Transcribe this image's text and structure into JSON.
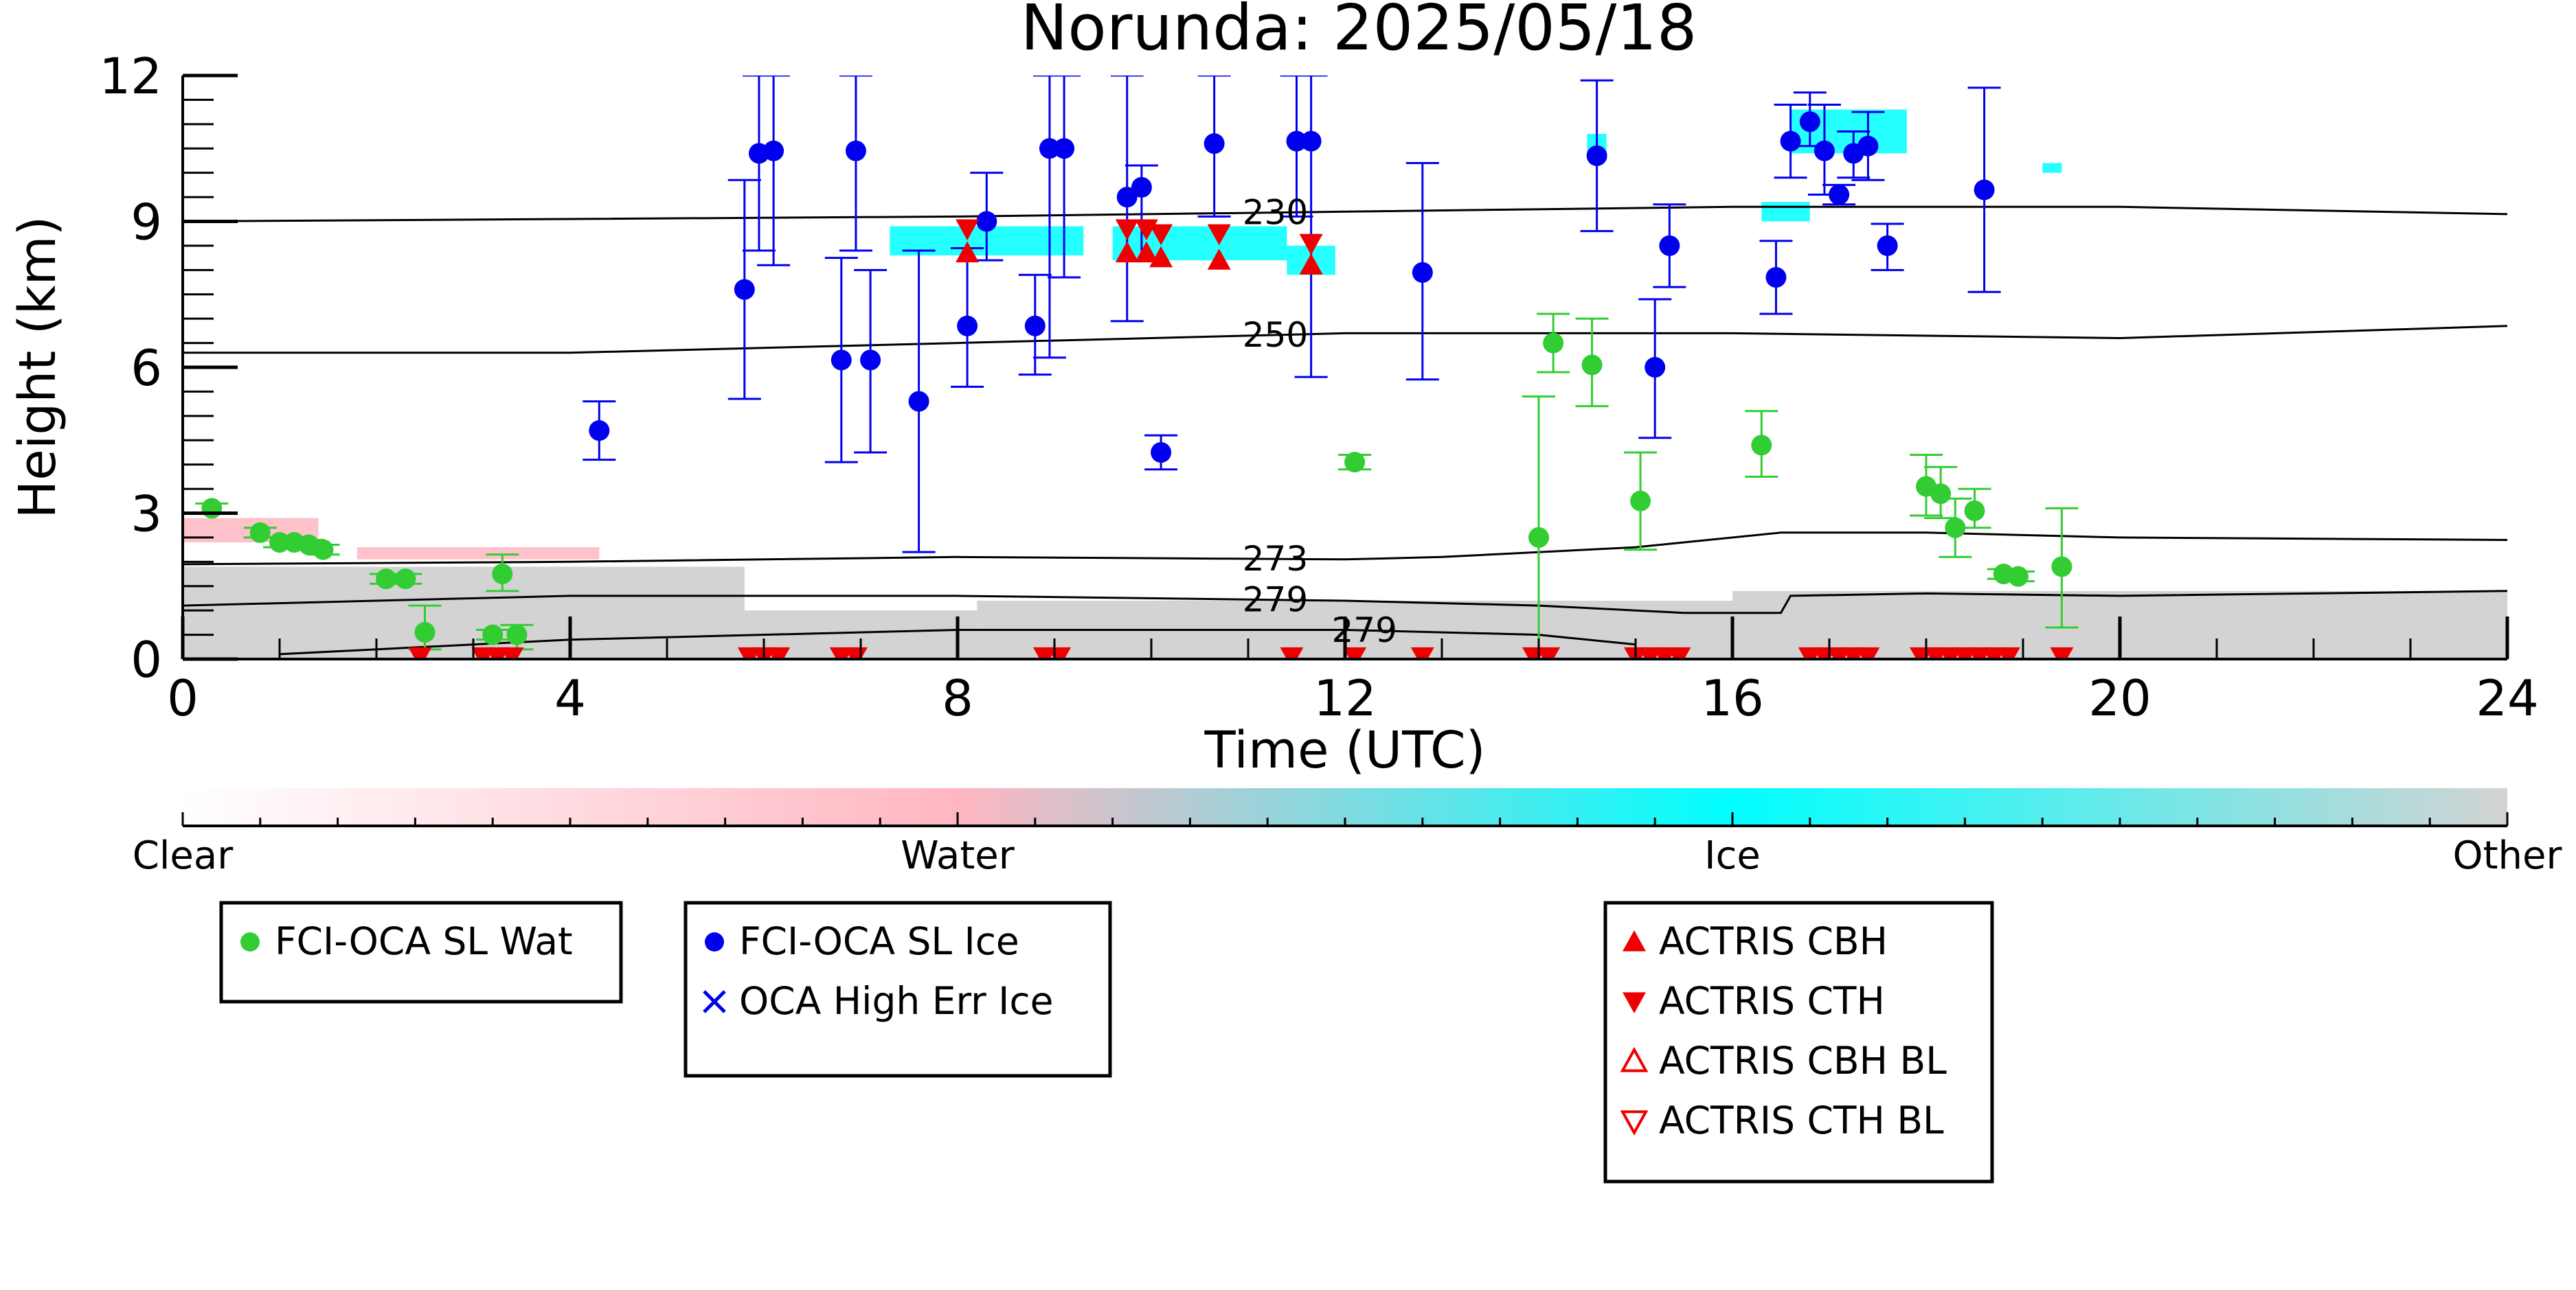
{
  "chart_data": {
    "type": "scatter",
    "title": "Norunda: 2025/05/18",
    "xlabel": "Time (UTC)",
    "ylabel": "Height (km)",
    "xlim": [
      0,
      24
    ],
    "ylim": [
      0,
      12
    ],
    "x_ticks": [
      0,
      4,
      8,
      12,
      16,
      20,
      24
    ],
    "y_ticks": [
      0,
      3,
      6,
      9,
      12
    ],
    "colorbar": {
      "labels": [
        "Clear",
        "Water",
        "Ice",
        "Other"
      ],
      "colors": [
        "#ffffff",
        "#ffb6c1",
        "#00ffff",
        "#d3d3d3"
      ]
    },
    "contours": [
      {
        "label": "230",
        "x": [
          0,
          4,
          8,
          12,
          16,
          20,
          24
        ],
        "y": [
          9.0,
          9.05,
          9.1,
          9.2,
          9.3,
          9.3,
          9.15
        ]
      },
      {
        "label": "250",
        "x": [
          0,
          4,
          8,
          12,
          16,
          20,
          24
        ],
        "y": [
          6.3,
          6.3,
          6.5,
          6.7,
          6.7,
          6.6,
          6.85
        ]
      },
      {
        "label": "273",
        "x": [
          0,
          4,
          8,
          12,
          13,
          15,
          16.5,
          18,
          20,
          24
        ],
        "y": [
          1.95,
          2.0,
          2.1,
          2.05,
          2.1,
          2.3,
          2.6,
          2.6,
          2.5,
          2.45
        ]
      },
      {
        "label": "279",
        "x": [
          0,
          4,
          8,
          12,
          14,
          15.5,
          16.5,
          16.6,
          18,
          20,
          24
        ],
        "y": [
          1.1,
          1.3,
          1.3,
          1.2,
          1.1,
          0.95,
          0.95,
          1.3,
          1.35,
          1.3,
          1.4
        ]
      },
      {
        "label": "279",
        "x": [
          1,
          4,
          8,
          12,
          14,
          15
        ],
        "y": [
          0.1,
          0.4,
          0.6,
          0.6,
          0.5,
          0.3
        ]
      }
    ],
    "series": [
      {
        "name": "FCI-OCA SL Wat",
        "color": "#32cd32",
        "marker": "circle",
        "points": [
          {
            "x": 0.3,
            "y": 3.1,
            "lo": 3.0,
            "hi": 3.2
          },
          {
            "x": 0.8,
            "y": 2.6,
            "lo": 2.5,
            "hi": 2.7
          },
          {
            "x": 1.0,
            "y": 2.4,
            "lo": 2.3,
            "hi": 2.5
          },
          {
            "x": 1.15,
            "y": 2.4,
            "lo": 2.3,
            "hi": 2.5
          },
          {
            "x": 1.3,
            "y": 2.35,
            "lo": 2.25,
            "hi": 2.45
          },
          {
            "x": 1.45,
            "y": 2.25,
            "lo": 2.15,
            "hi": 2.35
          },
          {
            "x": 2.1,
            "y": 1.65,
            "lo": 1.55,
            "hi": 1.75
          },
          {
            "x": 2.3,
            "y": 1.65,
            "lo": 1.55,
            "hi": 1.75
          },
          {
            "x": 2.5,
            "y": 0.55,
            "lo": 0.2,
            "hi": 1.1
          },
          {
            "x": 3.2,
            "y": 0.5,
            "lo": 0.4,
            "hi": 0.6
          },
          {
            "x": 3.3,
            "y": 1.75,
            "lo": 1.4,
            "hi": 2.15
          },
          {
            "x": 3.45,
            "y": 0.5,
            "lo": 0.2,
            "hi": 0.7
          },
          {
            "x": 12.1,
            "y": 4.05,
            "lo": 3.9,
            "hi": 4.2
          },
          {
            "x": 14.0,
            "y": 2.5,
            "lo": 0.0,
            "hi": 5.4
          },
          {
            "x": 14.15,
            "y": 6.5,
            "lo": 5.9,
            "hi": 7.1
          },
          {
            "x": 14.55,
            "y": 6.05,
            "lo": 5.2,
            "hi": 7.0
          },
          {
            "x": 15.05,
            "y": 3.25,
            "lo": 2.25,
            "hi": 4.25
          },
          {
            "x": 16.3,
            "y": 4.4,
            "lo": 3.75,
            "hi": 5.1
          },
          {
            "x": 18.0,
            "y": 3.55,
            "lo": 2.95,
            "hi": 4.2
          },
          {
            "x": 18.15,
            "y": 3.4,
            "lo": 2.9,
            "hi": 3.95
          },
          {
            "x": 18.3,
            "y": 2.7,
            "lo": 2.1,
            "hi": 3.3
          },
          {
            "x": 18.5,
            "y": 3.05,
            "lo": 2.7,
            "hi": 3.5
          },
          {
            "x": 18.8,
            "y": 1.75,
            "lo": 1.65,
            "hi": 1.85
          },
          {
            "x": 18.95,
            "y": 1.7,
            "lo": 1.6,
            "hi": 1.8
          },
          {
            "x": 19.4,
            "y": 1.9,
            "lo": 0.65,
            "hi": 3.1
          }
        ]
      },
      {
        "name": "FCI-OCA SL Ice",
        "color": "#0000ee",
        "marker": "circle",
        "points": [
          {
            "x": 4.3,
            "y": 4.7,
            "lo": 4.1,
            "hi": 5.3
          },
          {
            "x": 5.8,
            "y": 7.6,
            "lo": 5.35,
            "hi": 9.85
          },
          {
            "x": 5.95,
            "y": 10.4,
            "lo": 8.4,
            "hi": 12.0
          },
          {
            "x": 6.1,
            "y": 10.45,
            "lo": 8.1,
            "hi": 12.0
          },
          {
            "x": 6.8,
            "y": 6.15,
            "lo": 4.05,
            "hi": 8.25
          },
          {
            "x": 6.95,
            "y": 10.45,
            "lo": 8.4,
            "hi": 12.0
          },
          {
            "x": 7.1,
            "y": 6.15,
            "lo": 4.25,
            "hi": 8.0
          },
          {
            "x": 7.6,
            "y": 5.3,
            "lo": 2.2,
            "hi": 8.4
          },
          {
            "x": 8.1,
            "y": 6.85,
            "lo": 5.6,
            "hi": 8.45
          },
          {
            "x": 8.3,
            "y": 9.0,
            "lo": 8.2,
            "hi": 10.0
          },
          {
            "x": 8.8,
            "y": 6.85,
            "lo": 5.85,
            "hi": 7.9
          },
          {
            "x": 8.95,
            "y": 10.5,
            "lo": 6.2,
            "hi": 12.0
          },
          {
            "x": 9.1,
            "y": 10.5,
            "lo": 7.85,
            "hi": 12.0
          },
          {
            "x": 9.75,
            "y": 9.5,
            "lo": 6.95,
            "hi": 12.0
          },
          {
            "x": 9.9,
            "y": 9.7,
            "lo": 8.2,
            "hi": 10.15
          },
          {
            "x": 10.1,
            "y": 4.25,
            "lo": 3.9,
            "hi": 4.6
          },
          {
            "x": 10.65,
            "y": 10.6,
            "lo": 9.1,
            "hi": 12.0
          },
          {
            "x": 11.5,
            "y": 10.65,
            "lo": 9.1,
            "hi": 12.0
          },
          {
            "x": 11.65,
            "y": 10.65,
            "lo": 5.8,
            "hi": 12.0
          },
          {
            "x": 12.8,
            "y": 7.95,
            "lo": 5.75,
            "hi": 10.2
          },
          {
            "x": 14.6,
            "y": 10.35,
            "lo": 8.8,
            "hi": 11.9
          },
          {
            "x": 15.2,
            "y": 6.0,
            "lo": 4.55,
            "hi": 7.4
          },
          {
            "x": 15.35,
            "y": 8.5,
            "lo": 7.65,
            "hi": 9.35
          },
          {
            "x": 16.45,
            "y": 7.85,
            "lo": 7.1,
            "hi": 8.6
          },
          {
            "x": 16.6,
            "y": 10.65,
            "lo": 9.9,
            "hi": 11.4
          },
          {
            "x": 16.8,
            "y": 11.05,
            "lo": 10.55,
            "hi": 11.65
          },
          {
            "x": 16.95,
            "y": 10.45,
            "lo": 9.55,
            "hi": 11.4
          },
          {
            "x": 17.1,
            "y": 9.55,
            "lo": 9.35,
            "hi": 9.75
          },
          {
            "x": 17.25,
            "y": 10.4,
            "lo": 9.9,
            "hi": 10.85
          },
          {
            "x": 17.4,
            "y": 10.55,
            "lo": 9.85,
            "hi": 11.25
          },
          {
            "x": 17.6,
            "y": 8.5,
            "lo": 8.0,
            "hi": 8.95
          },
          {
            "x": 18.6,
            "y": 9.65,
            "lo": 7.55,
            "hi": 11.75
          }
        ]
      },
      {
        "name": "OCA High Err Ice",
        "color": "#0000ee",
        "marker": "x",
        "points": []
      },
      {
        "name": "ACTRIS CBH",
        "color": "#ee0000",
        "marker": "triangle-up",
        "points": [
          {
            "x": 8.1,
            "y": 8.35
          },
          {
            "x": 9.75,
            "y": 8.35
          },
          {
            "x": 9.95,
            "y": 8.35
          },
          {
            "x": 10.1,
            "y": 8.25
          },
          {
            "x": 10.7,
            "y": 8.2
          },
          {
            "x": 11.65,
            "y": 8.1
          }
        ]
      },
      {
        "name": "ACTRIS CTH",
        "color": "#ee0000",
        "marker": "triangle-down",
        "points": [
          {
            "x": 8.1,
            "y": 8.85
          },
          {
            "x": 9.75,
            "y": 8.85
          },
          {
            "x": 9.95,
            "y": 8.85
          },
          {
            "x": 10.1,
            "y": 8.75
          },
          {
            "x": 10.7,
            "y": 8.75
          },
          {
            "x": 11.65,
            "y": 8.55
          },
          {
            "x": 2.45,
            "y": 0.05
          },
          {
            "x": 3.1,
            "y": 0.05
          },
          {
            "x": 3.25,
            "y": 0.05
          },
          {
            "x": 3.4,
            "y": 0.05
          },
          {
            "x": 5.85,
            "y": 0.05
          },
          {
            "x": 6.0,
            "y": 0.05
          },
          {
            "x": 6.15,
            "y": 0.05
          },
          {
            "x": 6.8,
            "y": 0.05
          },
          {
            "x": 6.95,
            "y": 0.05
          },
          {
            "x": 8.9,
            "y": 0.05
          },
          {
            "x": 9.05,
            "y": 0.05
          },
          {
            "x": 11.45,
            "y": 0.05
          },
          {
            "x": 12.1,
            "y": 0.05
          },
          {
            "x": 12.8,
            "y": 0.05
          },
          {
            "x": 13.95,
            "y": 0.05
          },
          {
            "x": 14.1,
            "y": 0.05
          },
          {
            "x": 15.0,
            "y": 0.05
          },
          {
            "x": 15.15,
            "y": 0.05
          },
          {
            "x": 15.3,
            "y": 0.05
          },
          {
            "x": 15.45,
            "y": 0.05
          },
          {
            "x": 16.8,
            "y": 0.05
          },
          {
            "x": 16.95,
            "y": 0.05
          },
          {
            "x": 17.1,
            "y": 0.05
          },
          {
            "x": 17.25,
            "y": 0.05
          },
          {
            "x": 17.4,
            "y": 0.05
          },
          {
            "x": 17.95,
            "y": 0.05
          },
          {
            "x": 18.1,
            "y": 0.05
          },
          {
            "x": 18.25,
            "y": 0.05
          },
          {
            "x": 18.4,
            "y": 0.05
          },
          {
            "x": 18.55,
            "y": 0.05
          },
          {
            "x": 18.7,
            "y": 0.05
          },
          {
            "x": 18.85,
            "y": 0.05
          },
          {
            "x": 19.4,
            "y": 0.05
          }
        ]
      },
      {
        "name": "ACTRIS CBH BL",
        "color": "#ee0000",
        "marker": "triangle-up-open",
        "points": []
      },
      {
        "name": "ACTRIS CTH BL",
        "color": "#ee0000",
        "marker": "triangle-down-open",
        "points": []
      }
    ],
    "classification_background": [
      {
        "class": "Other",
        "x_start": 0.0,
        "x_end": 5.8,
        "y_bottom": 0,
        "y_top": 1.9
      },
      {
        "class": "Other",
        "x_start": 5.8,
        "x_end": 8.2,
        "y_bottom": 0,
        "y_top": 1.0
      },
      {
        "class": "Other",
        "x_start": 8.2,
        "x_end": 16.0,
        "y_bottom": 0,
        "y_top": 1.2
      },
      {
        "class": "Other",
        "x_start": 16.0,
        "x_end": 24.0,
        "y_bottom": 0,
        "y_top": 1.4
      },
      {
        "class": "Water",
        "x_start": 0.0,
        "x_end": 1.4,
        "y_bottom": 2.4,
        "y_top": 2.9
      },
      {
        "class": "Water",
        "x_start": 1.8,
        "x_end": 4.3,
        "y_bottom": 2.05,
        "y_top": 2.3
      },
      {
        "class": "Ice",
        "x_start": 7.3,
        "x_end": 9.3,
        "y_bottom": 8.3,
        "y_top": 8.9
      },
      {
        "class": "Ice",
        "x_start": 9.6,
        "x_end": 11.4,
        "y_bottom": 8.2,
        "y_top": 8.9
      },
      {
        "class": "Ice",
        "x_start": 11.4,
        "x_end": 11.9,
        "y_bottom": 7.9,
        "y_top": 8.5
      },
      {
        "class": "Ice",
        "x_start": 14.5,
        "x_end": 14.7,
        "y_bottom": 10.3,
        "y_top": 10.8
      },
      {
        "class": "Ice",
        "x_start": 16.3,
        "x_end": 16.8,
        "y_bottom": 9.0,
        "y_top": 9.4
      },
      {
        "class": "Ice",
        "x_start": 16.6,
        "x_end": 17.8,
        "y_bottom": 10.4,
        "y_top": 11.3
      },
      {
        "class": "Ice",
        "x_start": 19.2,
        "x_end": 19.4,
        "y_bottom": 10.0,
        "y_top": 10.2
      }
    ],
    "legends": [
      {
        "entries": [
          "FCI-OCA SL Wat"
        ]
      },
      {
        "entries": [
          "FCI-OCA SL Ice",
          "OCA High Err Ice"
        ]
      },
      {
        "entries": [
          "ACTRIS CBH",
          "ACTRIS CTH",
          "ACTRIS CBH BL",
          "ACTRIS CTH BL"
        ]
      }
    ]
  }
}
